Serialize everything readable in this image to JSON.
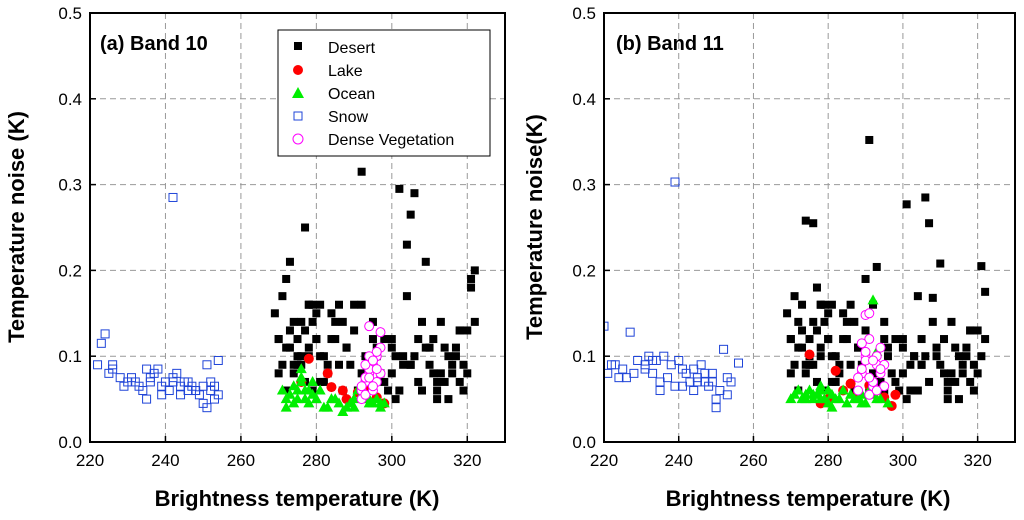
{
  "chart_data": [
    {
      "type": "scatter",
      "panel_label": "(a) Band 10",
      "xlabel": "Brightness temperature (K)",
      "ylabel": "Temperature noise (K)",
      "xlim": [
        220,
        330
      ],
      "ylim": [
        0,
        0.5
      ],
      "xticks": [
        "220",
        "240",
        "260",
        "280",
        "300",
        "320"
      ],
      "yticks": [
        "0.0",
        "0.1",
        "0.2",
        "0.3",
        "0.4",
        "0.5"
      ],
      "grid": true,
      "legend_position": "top-right",
      "legend": [
        "Desert",
        "Lake",
        "Ocean",
        "Snow",
        "Dense Vegetation"
      ],
      "series": [
        {
          "name": "Desert",
          "marker": "filled-square",
          "color": "#000000",
          "x": [
            269,
            270,
            271,
            272,
            273,
            274,
            275,
            276,
            277,
            278,
            279,
            280,
            271,
            272,
            273,
            274,
            275,
            276,
            277,
            278,
            279,
            280,
            281,
            282,
            283,
            284,
            285,
            286,
            287,
            288,
            290,
            292,
            293,
            295,
            296,
            298,
            300,
            301,
            302,
            303,
            304,
            305,
            306,
            307,
            308,
            309,
            310,
            311,
            312,
            313,
            314,
            315,
            316,
            317,
            318,
            319,
            320,
            321,
            322,
            270,
            272,
            274,
            276,
            278,
            280,
            282,
            284,
            286,
            288,
            290,
            292,
            294,
            296,
            298,
            300,
            302,
            304,
            306,
            308,
            310,
            312,
            314,
            316,
            318,
            320,
            322,
            273,
            275,
            277,
            279,
            281,
            283,
            285,
            287,
            289,
            291,
            293,
            295,
            297,
            299,
            301,
            303,
            305,
            307,
            309,
            311,
            313,
            315,
            317,
            319,
            321,
            270,
            278,
            281,
            292,
            295,
            300,
            305,
            312,
            318
          ],
          "y": [
            0.15,
            0.12,
            0.17,
            0.19,
            0.21,
            0.14,
            0.12,
            0.1,
            0.25,
            0.16,
            0.14,
            0.15,
            0.09,
            0.11,
            0.13,
            0.08,
            0.1,
            0.09,
            0.07,
            0.11,
            0.06,
            0.12,
            0.07,
            0.1,
            0.09,
            0.12,
            0.14,
            0.16,
            0.06,
            0.11,
            0.16,
            0.315,
            0.1,
            0.14,
            0.11,
            0.07,
            0.12,
            0.1,
            0.295,
            0.09,
            0.23,
            0.265,
            0.29,
            0.12,
            0.06,
            0.21,
            0.11,
            0.08,
            0.05,
            0.14,
            0.07,
            0.1,
            0.09,
            0.11,
            0.13,
            0.06,
            0.08,
            0.18,
            0.2,
            0.08,
            0.06,
            0.09,
            0.14,
            0.16,
            0.12,
            0.07,
            0.15,
            0.09,
            0.11,
            0.13,
            0.16,
            0.07,
            0.1,
            0.12,
            0.08,
            0.06,
            0.17,
            0.1,
            0.14,
            0.09,
            0.06,
            0.11,
            0.08,
            0.07,
            0.13,
            0.14,
            0.11,
            0.09,
            0.13,
            0.16,
            0.1,
            0.08,
            0.12,
            0.14,
            0.09,
            0.06,
            0.07,
            0.12,
            0.08,
            0.06,
            0.05,
            0.1,
            0.09,
            0.07,
            0.11,
            0.12,
            0.08,
            0.05,
            0.1,
            0.09,
            0.19,
            0.12,
            0.1,
            0.16,
            0.08,
            0.06,
            0.11,
            0.09,
            0.07,
            0.13
          ]
        },
        {
          "name": "Lake",
          "marker": "filled-circle",
          "color": "#ff0000",
          "x": [
            278,
            283,
            284,
            287,
            293,
            298,
            276,
            288,
            291,
            296
          ],
          "y": [
            0.097,
            0.08,
            0.064,
            0.06,
            0.062,
            0.045,
            0.07,
            0.05,
            0.058,
            0.052
          ]
        },
        {
          "name": "Ocean",
          "marker": "filled-triangle",
          "color": "#00ee00",
          "x": [
            271,
            272,
            273,
            274,
            275,
            276,
            277,
            278,
            279,
            280,
            281,
            282,
            284,
            286,
            288,
            290,
            292,
            294,
            296,
            298,
            272,
            275,
            277,
            279,
            283,
            285,
            289,
            291,
            293,
            295,
            297,
            274,
            276,
            278,
            280,
            287,
            290,
            294,
            297,
            276
          ],
          "y": [
            0.06,
            0.05,
            0.055,
            0.065,
            0.05,
            0.07,
            0.06,
            0.045,
            0.055,
            0.05,
            0.06,
            0.04,
            0.05,
            0.045,
            0.04,
            0.05,
            0.055,
            0.045,
            0.05,
            0.045,
            0.04,
            0.06,
            0.05,
            0.07,
            0.04,
            0.05,
            0.045,
            0.06,
            0.05,
            0.045,
            0.04,
            0.045,
            0.075,
            0.06,
            0.05,
            0.035,
            0.04,
            0.05,
            0.045,
            0.085
          ]
        },
        {
          "name": "Snow",
          "marker": "open-square",
          "color": "#1f44d8",
          "x": [
            222,
            223,
            224,
            226,
            228,
            230,
            232,
            233,
            234,
            235,
            236,
            237,
            238,
            239,
            240,
            241,
            242,
            243,
            244,
            245,
            246,
            247,
            248,
            249,
            250,
            251,
            252,
            253,
            254,
            225,
            231,
            239,
            242,
            248,
            250,
            252,
            254,
            242,
            235,
            226,
            229,
            244,
            246,
            236,
            251,
            253
          ],
          "y": [
            0.09,
            0.115,
            0.126,
            0.085,
            0.075,
            0.07,
            0.07,
            0.065,
            0.06,
            0.05,
            0.07,
            0.08,
            0.085,
            0.065,
            0.07,
            0.06,
            0.075,
            0.08,
            0.065,
            0.07,
            0.06,
            0.065,
            0.06,
            0.055,
            0.065,
            0.09,
            0.06,
            0.05,
            0.055,
            0.08,
            0.075,
            0.055,
            0.285,
            0.06,
            0.045,
            0.07,
            0.095,
            0.07,
            0.085,
            0.09,
            0.065,
            0.055,
            0.07,
            0.075,
            0.04,
            0.065
          ]
        },
        {
          "name": "Dense Vegetation",
          "marker": "open-circle",
          "color": "#ff00ff",
          "x": [
            292,
            293,
            294,
            295,
            296,
            297,
            292,
            293,
            294,
            295,
            296,
            297,
            292,
            293,
            294,
            295,
            296,
            297,
            293,
            294,
            295,
            296,
            294,
            295
          ],
          "y": [
            0.06,
            0.07,
            0.08,
            0.09,
            0.1,
            0.11,
            0.065,
            0.075,
            0.085,
            0.095,
            0.105,
            0.128,
            0.05,
            0.055,
            0.1,
            0.06,
            0.07,
            0.08,
            0.09,
            0.135,
            0.065,
            0.085,
            0.075,
            0.095
          ]
        }
      ]
    },
    {
      "type": "scatter",
      "panel_label": "(b) Band 11",
      "xlabel": "Brightness temperature (K)",
      "ylabel": "Temperature noise(K)",
      "xlim": [
        220,
        330
      ],
      "ylim": [
        0,
        0.5
      ],
      "xticks": [
        "220",
        "240",
        "260",
        "280",
        "300",
        "320"
      ],
      "yticks": [
        "0.0",
        "0.1",
        "0.2",
        "0.3",
        "0.4",
        "0.5"
      ],
      "grid": true,
      "series": [
        {
          "name": "Desert",
          "marker": "filled-square",
          "color": "#000000",
          "x": [
            269,
            270,
            271,
            272,
            273,
            274,
            275,
            276,
            277,
            278,
            279,
            280,
            271,
            272,
            273,
            274,
            275,
            276,
            277,
            278,
            279,
            280,
            281,
            282,
            283,
            284,
            285,
            286,
            287,
            288,
            290,
            291,
            293,
            295,
            296,
            298,
            300,
            301,
            302,
            303,
            304,
            305,
            306,
            307,
            308,
            309,
            310,
            311,
            312,
            313,
            314,
            315,
            316,
            317,
            318,
            319,
            320,
            321,
            322,
            270,
            272,
            274,
            276,
            278,
            280,
            282,
            284,
            286,
            288,
            290,
            292,
            294,
            296,
            298,
            300,
            302,
            304,
            306,
            308,
            310,
            312,
            314,
            316,
            318,
            320,
            322,
            273,
            275,
            277,
            279,
            281,
            283,
            285,
            287,
            289,
            291,
            293,
            295,
            297,
            299,
            301,
            303,
            305,
            307,
            309,
            311,
            313,
            315,
            317,
            319,
            321,
            270,
            278,
            281,
            292,
            295,
            300,
            305,
            312,
            318
          ],
          "y": [
            0.15,
            0.12,
            0.17,
            0.14,
            0.16,
            0.258,
            0.12,
            0.255,
            0.18,
            0.16,
            0.14,
            0.15,
            0.09,
            0.11,
            0.13,
            0.08,
            0.1,
            0.09,
            0.07,
            0.11,
            0.06,
            0.12,
            0.07,
            0.1,
            0.09,
            0.12,
            0.14,
            0.16,
            0.06,
            0.11,
            0.19,
            0.352,
            0.204,
            0.14,
            0.11,
            0.07,
            0.12,
            0.277,
            0.09,
            0.1,
            0.06,
            0.12,
            0.285,
            0.255,
            0.168,
            0.1,
            0.208,
            0.08,
            0.05,
            0.14,
            0.07,
            0.1,
            0.09,
            0.11,
            0.13,
            0.06,
            0.08,
            0.205,
            0.175,
            0.08,
            0.06,
            0.09,
            0.14,
            0.16,
            0.12,
            0.07,
            0.15,
            0.09,
            0.11,
            0.13,
            0.16,
            0.07,
            0.1,
            0.12,
            0.08,
            0.06,
            0.17,
            0.1,
            0.14,
            0.09,
            0.06,
            0.11,
            0.08,
            0.07,
            0.13,
            0.12,
            0.11,
            0.09,
            0.13,
            0.16,
            0.1,
            0.08,
            0.12,
            0.14,
            0.09,
            0.06,
            0.07,
            0.12,
            0.08,
            0.06,
            0.05,
            0.1,
            0.09,
            0.07,
            0.11,
            0.12,
            0.08,
            0.05,
            0.1,
            0.09,
            0.1,
            0.12,
            0.1,
            0.16,
            0.08,
            0.06,
            0.11,
            0.09,
            0.07,
            0.13
          ]
        },
        {
          "name": "Lake",
          "marker": "filled-circle",
          "color": "#ff0000",
          "x": [
            275,
            282,
            284,
            286,
            288,
            291,
            293,
            295,
            297,
            298,
            278,
            280
          ],
          "y": [
            0.102,
            0.083,
            0.06,
            0.068,
            0.058,
            0.066,
            0.06,
            0.052,
            0.042,
            0.055,
            0.045,
            0.05
          ]
        },
        {
          "name": "Ocean",
          "marker": "filled-triangle",
          "color": "#00ee00",
          "x": [
            270,
            271,
            272,
            273,
            274,
            275,
            276,
            277,
            278,
            279,
            280,
            281,
            282,
            284,
            286,
            288,
            290,
            292,
            294,
            296,
            272,
            274,
            276,
            278,
            280,
            285,
            287,
            289,
            291,
            293,
            292,
            293,
            278,
            281,
            283,
            289
          ],
          "y": [
            0.05,
            0.055,
            0.06,
            0.05,
            0.055,
            0.06,
            0.05,
            0.055,
            0.06,
            0.05,
            0.045,
            0.055,
            0.05,
            0.06,
            0.055,
            0.05,
            0.045,
            0.055,
            0.05,
            0.045,
            0.06,
            0.05,
            0.055,
            0.05,
            0.06,
            0.045,
            0.05,
            0.055,
            0.06,
            0.05,
            0.165,
            0.105,
            0.065,
            0.04,
            0.05,
            0.045
          ]
        },
        {
          "name": "Snow",
          "marker": "open-square",
          "color": "#1f44d8",
          "x": [
            220,
            221,
            223,
            225,
            227,
            229,
            231,
            232,
            233,
            234,
            235,
            236,
            237,
            238,
            239,
            240,
            241,
            242,
            243,
            244,
            245,
            246,
            247,
            248,
            249,
            250,
            251,
            252,
            253,
            254,
            256,
            239,
            228,
            224,
            231,
            235,
            244,
            247,
            250,
            222,
            226,
            233,
            241,
            249,
            253,
            245
          ],
          "y": [
            0.135,
            0.08,
            0.09,
            0.085,
            0.128,
            0.095,
            0.09,
            0.1,
            0.08,
            0.095,
            0.06,
            0.1,
            0.075,
            0.09,
            0.065,
            0.095,
            0.085,
            0.08,
            0.07,
            0.085,
            0.075,
            0.09,
            0.08,
            0.065,
            0.07,
            0.04,
            0.06,
            0.108,
            0.075,
            0.07,
            0.092,
            0.303,
            0.08,
            0.075,
            0.085,
            0.07,
            0.06,
            0.07,
            0.05,
            0.09,
            0.075,
            0.095,
            0.065,
            0.08,
            0.055,
            0.07
          ]
        },
        {
          "name": "Dense Vegetation",
          "marker": "open-circle",
          "color": "#ff00ff",
          "x": [
            288,
            289,
            290,
            291,
            292,
            293,
            294,
            295,
            288,
            289,
            290,
            291,
            292,
            293,
            294,
            295,
            289,
            290,
            291,
            292,
            293,
            294,
            290,
            291,
            292
          ],
          "y": [
            0.06,
            0.08,
            0.1,
            0.12,
            0.07,
            0.09,
            0.11,
            0.065,
            0.075,
            0.085,
            0.095,
            0.055,
            0.065,
            0.1,
            0.08,
            0.09,
            0.115,
            0.148,
            0.15,
            0.07,
            0.06,
            0.085,
            0.105,
            0.075,
            0.095
          ]
        }
      ]
    }
  ]
}
